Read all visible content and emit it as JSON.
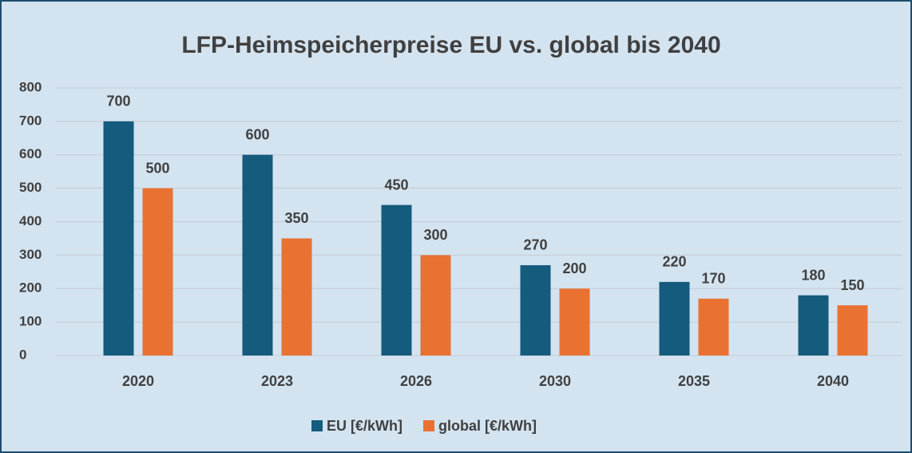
{
  "chart_data": {
    "type": "bar",
    "title": "LFP-Heimspeicherpreise EU vs. global bis 2040",
    "categories": [
      "2020",
      "2023",
      "2026",
      "2030",
      "2035",
      "2040"
    ],
    "series": [
      {
        "name": "EU [€/kWh]",
        "color": "#145b7d",
        "values": [
          700,
          600,
          450,
          270,
          220,
          180
        ]
      },
      {
        "name": "global [€/kWh]",
        "color": "#e97132",
        "values": [
          500,
          350,
          300,
          200,
          170,
          150
        ]
      }
    ],
    "ylim": [
      0,
      800
    ],
    "yticks": [
      0,
      100,
      200,
      300,
      400,
      500,
      600,
      700,
      800
    ],
    "grid": true,
    "legend": "bottom"
  }
}
